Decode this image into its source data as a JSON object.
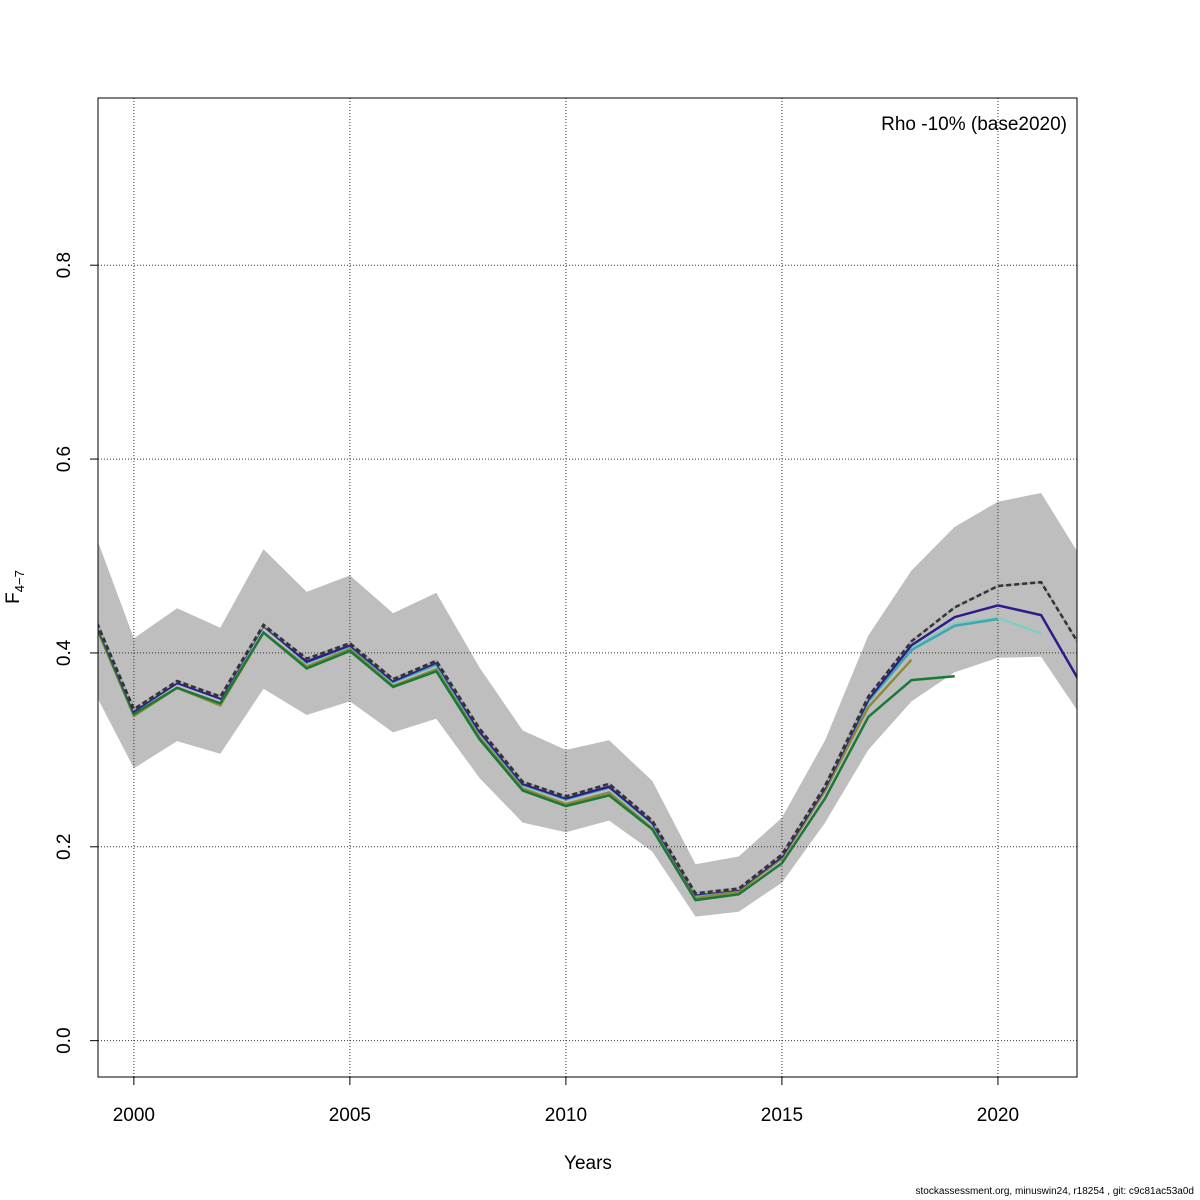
{
  "chart_data": {
    "type": "line",
    "annotation": "Rho -10% (base2020)",
    "xlabel": "Years",
    "ylabel_main": "F",
    "ylabel_sub": "4−7",
    "xlim": [
      1999.17,
      2021.83
    ],
    "ylim": [
      -0.0375,
      0.9725
    ],
    "xticks": [
      2000,
      2005,
      2010,
      2015,
      2020
    ],
    "yticks": [
      0.0,
      0.2,
      0.4,
      0.6,
      0.8
    ],
    "ytick_labels": [
      "0.0",
      "0.2",
      "0.4",
      "0.6",
      "0.8"
    ],
    "grid": true,
    "confidence_band": {
      "color": "#bebebe",
      "x": [
        1999,
        2000,
        2001,
        2002,
        2003,
        2004,
        2005,
        2006,
        2007,
        2008,
        2009,
        2010,
        2011,
        2012,
        2013,
        2014,
        2015,
        2016,
        2017,
        2018,
        2019,
        2020,
        2021,
        2022
      ],
      "upper": [
        0.535,
        0.415,
        0.446,
        0.426,
        0.507,
        0.463,
        0.48,
        0.441,
        0.462,
        0.385,
        0.32,
        0.3,
        0.31,
        0.268,
        0.182,
        0.19,
        0.23,
        0.31,
        0.418,
        0.485,
        0.53,
        0.556,
        0.565,
        0.493
      ],
      "lower": [
        0.367,
        0.281,
        0.309,
        0.296,
        0.363,
        0.336,
        0.35,
        0.318,
        0.332,
        0.271,
        0.225,
        0.215,
        0.227,
        0.195,
        0.128,
        0.133,
        0.163,
        0.225,
        0.3,
        0.35,
        0.38,
        0.395,
        0.396,
        0.33
      ]
    },
    "series": [
      {
        "color": "#80cdc1",
        "dashed": false,
        "x": [
          1999,
          2000,
          2001,
          2002,
          2003,
          2004,
          2005,
          2006,
          2007,
          2008,
          2009,
          2010,
          2011,
          2012,
          2013,
          2014,
          2015,
          2016,
          2017,
          2018,
          2019,
          2020,
          2021
        ],
        "values": [
          0.447,
          0.34,
          0.369,
          0.353,
          0.428,
          0.39,
          0.407,
          0.37,
          0.388,
          0.318,
          0.264,
          0.249,
          0.261,
          0.224,
          0.15,
          0.156,
          0.19,
          0.26,
          0.35,
          0.405,
          0.43,
          0.436,
          0.42
        ]
      },
      {
        "color": "#3fa7b0",
        "dashed": false,
        "x": [
          1999,
          2000,
          2001,
          2002,
          2003,
          2004,
          2005,
          2006,
          2007,
          2008,
          2009,
          2010,
          2011,
          2012,
          2013,
          2014,
          2015,
          2016,
          2017,
          2018,
          2019,
          2020
        ],
        "values": [
          0.447,
          0.34,
          0.369,
          0.353,
          0.428,
          0.39,
          0.407,
          0.37,
          0.388,
          0.318,
          0.264,
          0.249,
          0.261,
          0.224,
          0.15,
          0.156,
          0.19,
          0.26,
          0.35,
          0.403,
          0.428,
          0.435
        ]
      },
      {
        "color": "#8b8b3a",
        "dashed": false,
        "x": [
          1999,
          2000,
          2001,
          2002,
          2003,
          2004,
          2005,
          2006,
          2007,
          2008,
          2009,
          2010,
          2011,
          2012,
          2013,
          2014,
          2015,
          2016,
          2017,
          2018
        ],
        "values": [
          0.44,
          0.335,
          0.364,
          0.346,
          0.421,
          0.386,
          0.404,
          0.366,
          0.383,
          0.313,
          0.26,
          0.244,
          0.256,
          0.219,
          0.147,
          0.154,
          0.188,
          0.258,
          0.344,
          0.393
        ]
      },
      {
        "color": "#1b7837",
        "dashed": false,
        "x": [
          1999,
          2000,
          2001,
          2002,
          2003,
          2004,
          2005,
          2006,
          2007,
          2008,
          2009,
          2010,
          2011,
          2012,
          2013,
          2014,
          2015,
          2016,
          2017,
          2018,
          2019
        ],
        "values": [
          0.442,
          0.337,
          0.364,
          0.348,
          0.421,
          0.384,
          0.402,
          0.365,
          0.381,
          0.311,
          0.258,
          0.242,
          0.253,
          0.218,
          0.145,
          0.151,
          0.183,
          0.25,
          0.334,
          0.372,
          0.376
        ]
      },
      {
        "color": "#2d1b8c",
        "dashed": false,
        "x": [
          1999,
          2000,
          2001,
          2002,
          2003,
          2004,
          2005,
          2006,
          2007,
          2008,
          2009,
          2010,
          2011,
          2012,
          2013,
          2014,
          2015,
          2016,
          2017,
          2018,
          2019,
          2020,
          2021,
          2022
        ],
        "values": [
          0.445,
          0.34,
          0.369,
          0.353,
          0.428,
          0.391,
          0.408,
          0.371,
          0.39,
          0.319,
          0.265,
          0.25,
          0.262,
          0.225,
          0.151,
          0.156,
          0.19,
          0.261,
          0.352,
          0.408,
          0.437,
          0.449,
          0.439,
          0.362
        ]
      },
      {
        "color": "#333333",
        "dashed": true,
        "x": [
          1999,
          2000,
          2001,
          2002,
          2003,
          2004,
          2005,
          2006,
          2007,
          2008,
          2009,
          2010,
          2011,
          2012,
          2013,
          2014,
          2015,
          2016,
          2017,
          2018,
          2019,
          2020,
          2021,
          2022
        ],
        "values": [
          0.446,
          0.342,
          0.371,
          0.355,
          0.429,
          0.394,
          0.41,
          0.373,
          0.392,
          0.322,
          0.267,
          0.252,
          0.265,
          0.227,
          0.152,
          0.157,
          0.192,
          0.263,
          0.355,
          0.412,
          0.447,
          0.469,
          0.473,
          0.4
        ]
      }
    ]
  },
  "footer": "stockassessment.org, minuswin24, r18254 , git: c9c81ac53a0d"
}
